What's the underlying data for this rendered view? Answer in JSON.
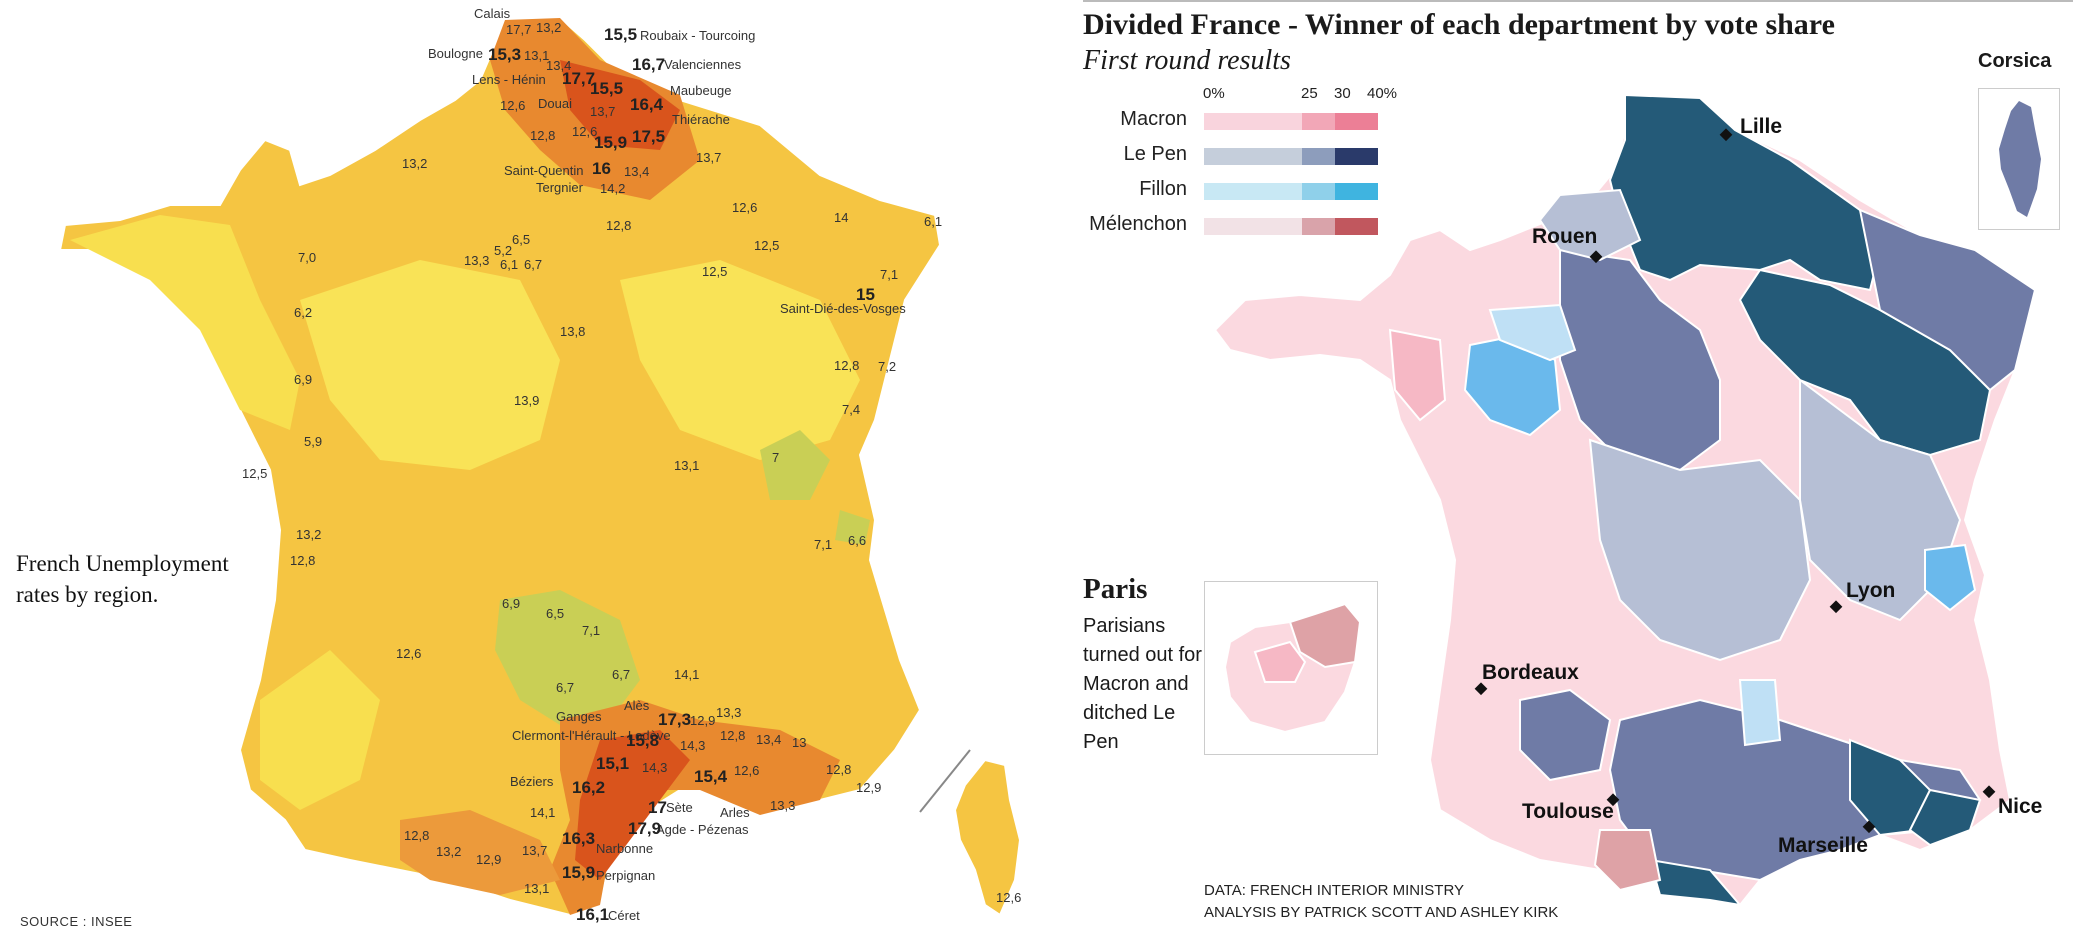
{
  "left_map": {
    "caption": "French Unemployment rates by region.",
    "source": "SOURCE : INSEE",
    "place_labels": [
      "Calais",
      "Roubaix - Tourcoing",
      "Boulogne",
      "Valenciennes",
      "Lens - Hénin",
      "Maubeuge",
      "Douai",
      "Thiérache",
      "Saint-Quentin",
      "Tergnier",
      "Saint-Dié-des-Vosges",
      "Ganges",
      "Alès",
      "Clermont-l'Hérault - Lodève",
      "Béziers",
      "Sète",
      "Arles",
      "Agde - Pézenas",
      "Narbonne",
      "Perpignan",
      "Céret"
    ],
    "rate_labels": [
      "17,7",
      "13,2",
      "15,5",
      "15,3",
      "13,1",
      "16,7",
      "13,4",
      "17,7",
      "15,5",
      "12,6",
      "13,7",
      "16,4",
      "12,8",
      "12,6",
      "15,9",
      "17,5",
      "13,2",
      "16",
      "13,4",
      "13,7",
      "14,2",
      "12,6",
      "14",
      "12,8",
      "6,1",
      "12,5",
      "7,0",
      "6,5",
      "5,2",
      "13,3",
      "6,1",
      "6,7",
      "12,5",
      "15",
      "7,1",
      "6,2",
      "13,8",
      "12,8",
      "7,2",
      "6,9",
      "13,9",
      "7,4",
      "5,9",
      "13,1",
      "7",
      "12,5",
      "13,2",
      "12,8",
      "7,1",
      "6,6",
      "6,9",
      "6,5",
      "7,1",
      "12,6",
      "6,7",
      "14,1",
      "6,7",
      "17,3",
      "12,9",
      "13,3",
      "15,8",
      "12,8",
      "13,4",
      "13",
      "15,1",
      "14,3",
      "14,3",
      "15,4",
      "12,6",
      "12,8",
      "16,2",
      "12,9",
      "17",
      "13,3",
      "14,1",
      "17,9",
      "12,8",
      "13,2",
      "12,9",
      "13,7",
      "16,3",
      "15,9",
      "13,1",
      "16,1",
      "12,6"
    ]
  },
  "right_panel": {
    "title": "Divided France - Winner of each department by vote share",
    "subtitle": "First round results",
    "legend": {
      "scale_labels": [
        "0%",
        "25",
        "30",
        "40%"
      ],
      "rows": [
        {
          "name": "Macron",
          "colors": [
            "#f9d4dd",
            "#f2a7b7",
            "#ec7f96"
          ]
        },
        {
          "name": "Le Pen",
          "colors": [
            "#c5cedb",
            "#8d9dbc",
            "#2a3a6a"
          ]
        },
        {
          "name": "Fillon",
          "colors": [
            "#c8e8f4",
            "#8fd0ea",
            "#3fb4e0"
          ]
        },
        {
          "name": "Mélenchon",
          "colors": [
            "#f2e2e6",
            "#d9a3aa",
            "#c1575e"
          ]
        }
      ]
    },
    "corsica": "Corsica",
    "paris": {
      "title": "Paris",
      "text": "Parisians turned out for Macron and ditched Le Pen"
    },
    "cities": [
      "Lille",
      "Rouen",
      "Lyon",
      "Bordeaux",
      "Toulouse",
      "Nice",
      "Marseille"
    ],
    "credits": [
      "DATA: FRENCH INTERIOR MINISTRY",
      "ANALYSIS BY PATRICK SCOTT AND ASHLEY KIRK"
    ],
    "colors": {
      "lepen_dark": "#245a78",
      "lepen_mid": "#6f7ba6",
      "lepen_light": "#b6bfd5",
      "macron_light": "#fbd9e0",
      "macron_mid": "#f6b8c5",
      "fillon": "#6ab9ec",
      "fillon_light": "#bfe0f5",
      "melenchon": "#dea2a6"
    }
  }
}
